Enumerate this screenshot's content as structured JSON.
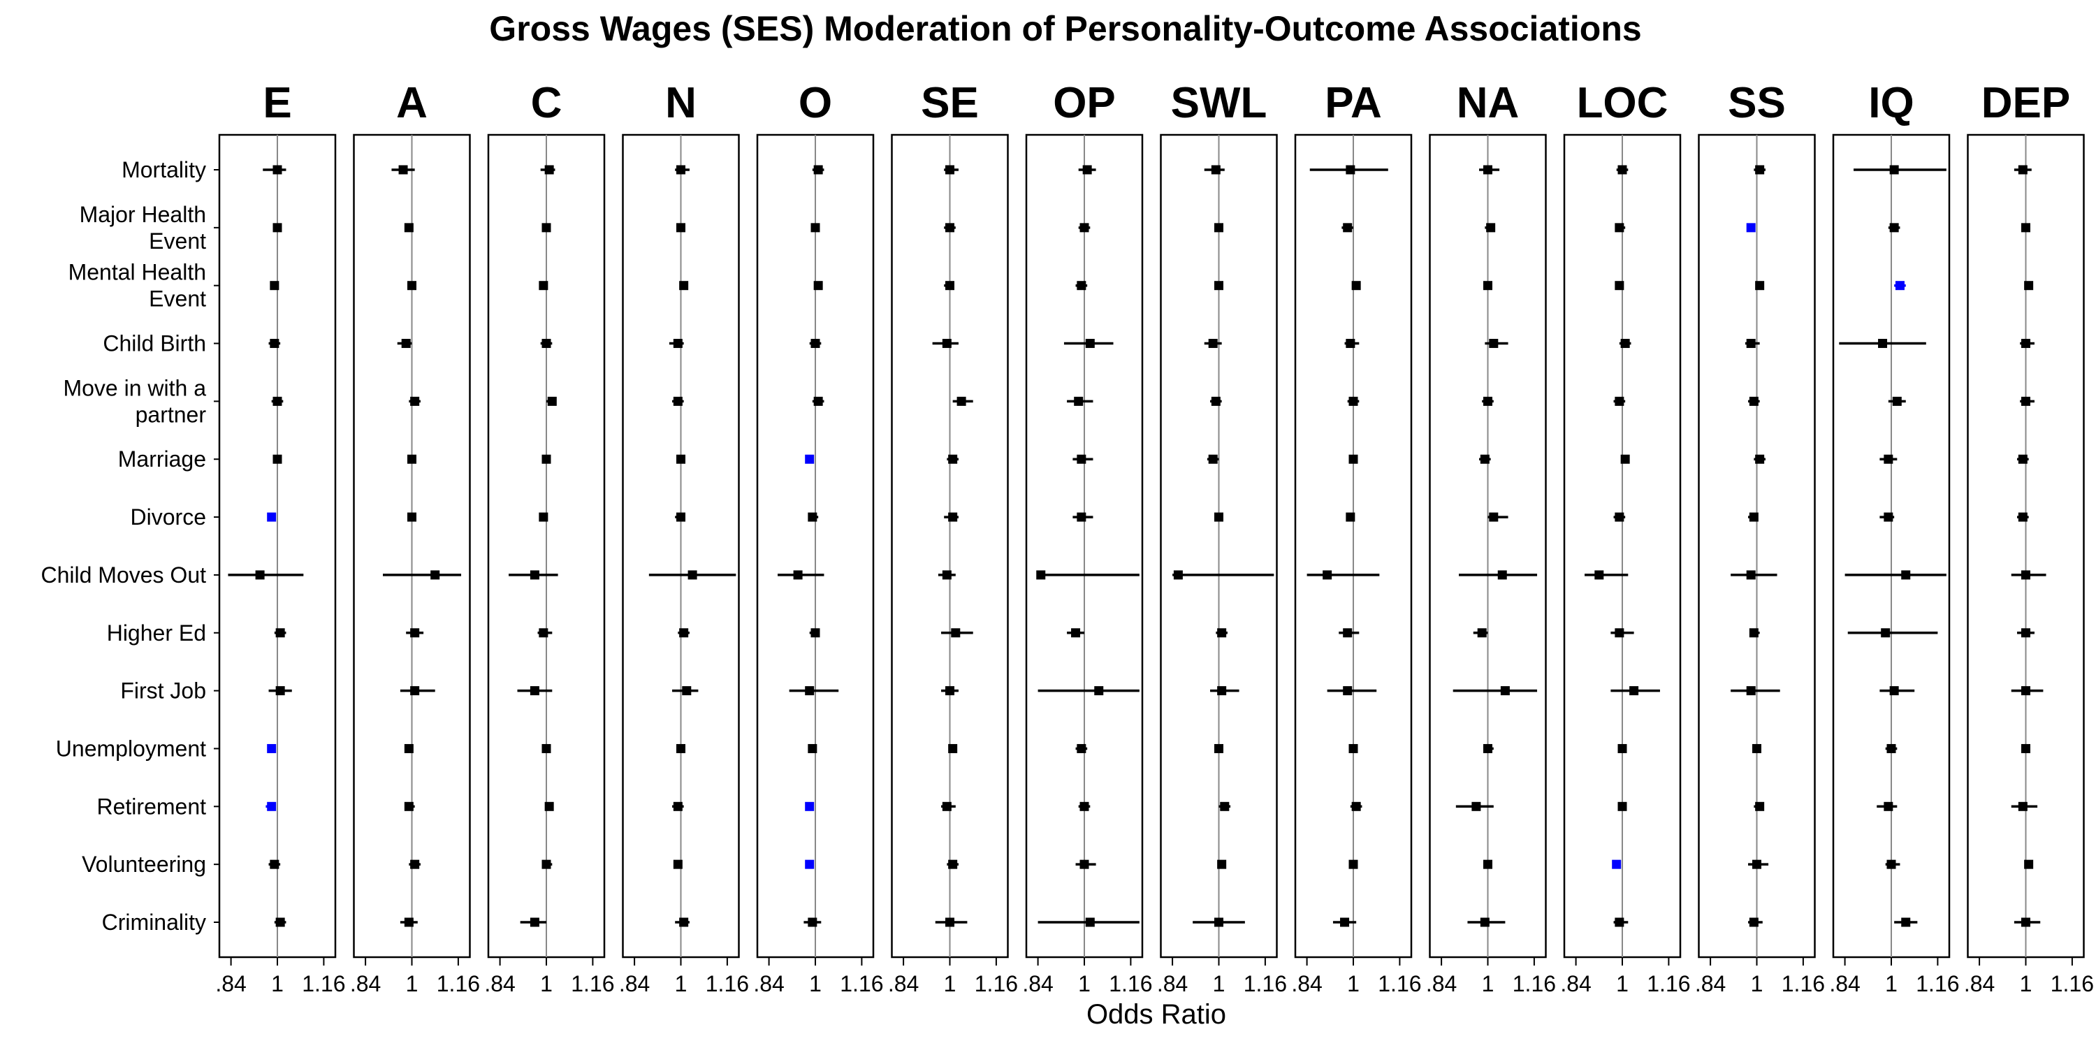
{
  "chart_data": {
    "type": "forest",
    "title": "Gross Wages (SES) Moderation of Personality-Outcome Associations",
    "xlabel": "Odds Ratio",
    "xlim": [
      0.8,
      1.2
    ],
    "x_ticks": [
      ".84",
      "1",
      "1.16"
    ],
    "x_tick_values": [
      0.84,
      1.0,
      1.16
    ],
    "reference_line": 1,
    "colors": {
      "default": "#000000",
      "significant": "#0000ff",
      "reference": "#888888"
    },
    "panels": [
      "E",
      "A",
      "C",
      "N",
      "O",
      "SE",
      "OP",
      "SWL",
      "PA",
      "NA",
      "LOC",
      "SS",
      "IQ",
      "DEP"
    ],
    "outcomes": [
      [
        "Mortality"
      ],
      [
        "Major Health",
        "Event"
      ],
      [
        "Mental Health",
        "Event"
      ],
      [
        "Child Birth"
      ],
      [
        "Move in with a",
        "partner"
      ],
      [
        "Marriage"
      ],
      [
        "Divorce"
      ],
      [
        "Child Moves Out"
      ],
      [
        "Higher Ed"
      ],
      [
        "First Job"
      ],
      [
        "Unemployment"
      ],
      [
        "Retirement"
      ],
      [
        "Volunteering"
      ],
      [
        "Criminality"
      ]
    ],
    "estimates": {
      "E": [
        [
          1.0,
          0.95,
          1.03,
          0
        ],
        [
          1.0,
          0.99,
          1.01,
          0
        ],
        [
          0.99,
          0.98,
          1.0,
          0
        ],
        [
          0.99,
          0.97,
          1.01,
          0
        ],
        [
          1.0,
          0.98,
          1.02,
          0
        ],
        [
          1.0,
          0.99,
          1.01,
          0
        ],
        [
          0.98,
          0.97,
          0.99,
          1
        ],
        [
          0.94,
          0.83,
          1.09,
          0
        ],
        [
          1.01,
          0.99,
          1.03,
          0
        ],
        [
          1.01,
          0.97,
          1.05,
          0
        ],
        [
          0.98,
          0.97,
          0.99,
          1
        ],
        [
          0.98,
          0.96,
          0.99,
          1
        ],
        [
          0.99,
          0.97,
          1.01,
          0
        ],
        [
          1.01,
          0.99,
          1.03,
          0
        ]
      ],
      "A": [
        [
          0.97,
          0.93,
          1.01,
          0
        ],
        [
          0.99,
          0.98,
          1.0,
          0
        ],
        [
          1.0,
          0.99,
          1.01,
          0
        ],
        [
          0.98,
          0.95,
          1.0,
          0
        ],
        [
          1.01,
          0.99,
          1.03,
          0
        ],
        [
          1.0,
          0.99,
          1.01,
          0
        ],
        [
          1.0,
          0.99,
          1.01,
          0
        ],
        [
          1.08,
          0.9,
          1.17,
          0
        ],
        [
          1.01,
          0.98,
          1.04,
          0
        ],
        [
          1.01,
          0.96,
          1.08,
          0
        ],
        [
          0.99,
          0.98,
          1.0,
          0
        ],
        [
          0.99,
          0.98,
          1.01,
          0
        ],
        [
          1.01,
          0.99,
          1.03,
          0
        ],
        [
          0.99,
          0.96,
          1.02,
          0
        ]
      ],
      "C": [
        [
          1.01,
          0.98,
          1.03,
          0
        ],
        [
          1.0,
          0.99,
          1.01,
          0
        ],
        [
          0.99,
          0.98,
          1.0,
          0
        ],
        [
          1.0,
          0.98,
          1.02,
          0
        ],
        [
          1.02,
          1.0,
          1.03,
          0
        ],
        [
          1.0,
          0.99,
          1.01,
          0
        ],
        [
          0.99,
          0.98,
          1.0,
          0
        ],
        [
          0.96,
          0.87,
          1.04,
          0
        ],
        [
          0.99,
          0.97,
          1.02,
          0
        ],
        [
          0.96,
          0.9,
          1.02,
          0
        ],
        [
          1.0,
          0.99,
          1.01,
          0
        ],
        [
          1.01,
          1.0,
          1.02,
          0
        ],
        [
          1.0,
          0.99,
          1.02,
          0
        ],
        [
          0.96,
          0.91,
          1.0,
          0
        ]
      ],
      "N": [
        [
          1.0,
          0.98,
          1.03,
          0
        ],
        [
          1.0,
          0.99,
          1.01,
          0
        ],
        [
          1.01,
          1.0,
          1.02,
          0
        ],
        [
          0.99,
          0.96,
          1.01,
          0
        ],
        [
          0.99,
          0.97,
          1.01,
          0
        ],
        [
          1.0,
          0.99,
          1.01,
          0
        ],
        [
          1.0,
          0.98,
          1.01,
          0
        ],
        [
          1.04,
          0.89,
          1.19,
          0
        ],
        [
          1.01,
          0.99,
          1.03,
          0
        ],
        [
          1.02,
          0.97,
          1.06,
          0
        ],
        [
          1.0,
          0.99,
          1.01,
          0
        ],
        [
          0.99,
          0.97,
          1.01,
          0
        ],
        [
          0.99,
          0.98,
          1.0,
          0
        ],
        [
          1.01,
          0.98,
          1.03,
          0
        ]
      ],
      "O": [
        [
          1.01,
          0.99,
          1.03,
          0
        ],
        [
          1.0,
          0.99,
          1.01,
          0
        ],
        [
          1.01,
          1.0,
          1.02,
          0
        ],
        [
          1.0,
          0.98,
          1.02,
          0
        ],
        [
          1.01,
          0.99,
          1.03,
          0
        ],
        [
          0.98,
          0.97,
          0.99,
          1
        ],
        [
          0.99,
          0.98,
          1.01,
          0
        ],
        [
          0.94,
          0.87,
          1.03,
          0
        ],
        [
          1.0,
          0.98,
          1.01,
          0
        ],
        [
          0.98,
          0.91,
          1.08,
          0
        ],
        [
          0.99,
          0.98,
          1.0,
          0
        ],
        [
          0.98,
          0.97,
          0.99,
          1
        ],
        [
          0.98,
          0.97,
          0.99,
          1
        ],
        [
          0.99,
          0.96,
          1.02,
          0
        ]
      ],
      "SE": [
        [
          1.0,
          0.98,
          1.03,
          0
        ],
        [
          1.0,
          0.98,
          1.02,
          0
        ],
        [
          1.0,
          0.98,
          1.01,
          0
        ],
        [
          0.99,
          0.94,
          1.03,
          0
        ],
        [
          1.04,
          1.01,
          1.08,
          0
        ],
        [
          1.01,
          0.99,
          1.03,
          0
        ],
        [
          1.01,
          0.98,
          1.03,
          0
        ],
        [
          0.99,
          0.96,
          1.02,
          0
        ],
        [
          1.02,
          0.97,
          1.08,
          0
        ],
        [
          1.0,
          0.97,
          1.03,
          0
        ],
        [
          1.01,
          1.0,
          1.02,
          0
        ],
        [
          0.99,
          0.97,
          1.02,
          0
        ],
        [
          1.01,
          0.99,
          1.03,
          0
        ],
        [
          1.0,
          0.95,
          1.06,
          0
        ]
      ],
      "OP": [
        [
          1.01,
          0.98,
          1.04,
          0
        ],
        [
          1.0,
          0.98,
          1.02,
          0
        ],
        [
          0.99,
          0.97,
          1.01,
          0
        ],
        [
          1.02,
          0.93,
          1.1,
          0
        ],
        [
          0.98,
          0.94,
          1.03,
          0
        ],
        [
          0.99,
          0.96,
          1.03,
          0
        ],
        [
          0.99,
          0.96,
          1.03,
          0
        ],
        [
          0.85,
          0.84,
          1.19,
          0
        ],
        [
          0.97,
          0.94,
          1.0,
          0
        ],
        [
          1.05,
          0.84,
          1.19,
          0
        ],
        [
          0.99,
          0.97,
          1.01,
          0
        ],
        [
          1.0,
          0.98,
          1.02,
          0
        ],
        [
          1.0,
          0.97,
          1.04,
          0
        ],
        [
          1.02,
          0.84,
          1.19,
          0
        ]
      ],
      "SWL": [
        [
          0.99,
          0.95,
          1.02,
          0
        ],
        [
          1.0,
          0.99,
          1.01,
          0
        ],
        [
          1.0,
          0.99,
          1.01,
          0
        ],
        [
          0.98,
          0.95,
          1.01,
          0
        ],
        [
          0.99,
          0.97,
          1.01,
          0
        ],
        [
          0.98,
          0.96,
          1.0,
          0
        ],
        [
          1.0,
          0.99,
          1.01,
          0
        ],
        [
          0.86,
          0.84,
          1.19,
          0
        ],
        [
          1.01,
          0.99,
          1.03,
          0
        ],
        [
          1.01,
          0.97,
          1.07,
          0
        ],
        [
          1.0,
          0.99,
          1.01,
          0
        ],
        [
          1.02,
          1.0,
          1.04,
          0
        ],
        [
          1.01,
          1.0,
          1.02,
          0
        ],
        [
          1.0,
          0.91,
          1.09,
          0
        ]
      ],
      "PA": [
        [
          0.99,
          0.85,
          1.12,
          0
        ],
        [
          0.98,
          0.96,
          1.0,
          0
        ],
        [
          1.01,
          1.0,
          1.02,
          0
        ],
        [
          0.99,
          0.97,
          1.02,
          0
        ],
        [
          1.0,
          0.98,
          1.02,
          0
        ],
        [
          1.0,
          0.99,
          1.01,
          0
        ],
        [
          0.99,
          0.98,
          1.0,
          0
        ],
        [
          0.91,
          0.84,
          1.09,
          0
        ],
        [
          0.98,
          0.95,
          1.02,
          0
        ],
        [
          0.98,
          0.91,
          1.08,
          0
        ],
        [
          1.0,
          0.99,
          1.01,
          0
        ],
        [
          1.01,
          0.99,
          1.03,
          0
        ],
        [
          1.0,
          0.99,
          1.01,
          0
        ],
        [
          0.97,
          0.93,
          1.01,
          0
        ]
      ],
      "NA": [
        [
          1.0,
          0.97,
          1.04,
          0
        ],
        [
          1.01,
          0.99,
          1.02,
          0
        ],
        [
          1.0,
          0.99,
          1.01,
          0
        ],
        [
          1.02,
          0.99,
          1.07,
          0
        ],
        [
          1.0,
          0.98,
          1.02,
          0
        ],
        [
          0.99,
          0.97,
          1.01,
          0
        ],
        [
          1.02,
          1.0,
          1.07,
          0
        ],
        [
          1.05,
          0.9,
          1.17,
          0
        ],
        [
          0.98,
          0.95,
          1.0,
          0
        ],
        [
          1.06,
          0.88,
          1.17,
          0
        ],
        [
          1.0,
          0.99,
          1.02,
          0
        ],
        [
          0.96,
          0.89,
          1.02,
          0
        ],
        [
          1.0,
          0.99,
          1.01,
          0
        ],
        [
          0.99,
          0.93,
          1.06,
          0
        ]
      ],
      "LOC": [
        [
          1.0,
          0.98,
          1.02,
          0
        ],
        [
          0.99,
          0.98,
          1.01,
          0
        ],
        [
          0.99,
          0.98,
          1.0,
          0
        ],
        [
          1.01,
          0.99,
          1.03,
          0
        ],
        [
          0.99,
          0.97,
          1.01,
          0
        ],
        [
          1.01,
          1.0,
          1.02,
          0
        ],
        [
          0.99,
          0.97,
          1.01,
          0
        ],
        [
          0.92,
          0.87,
          1.02,
          0
        ],
        [
          0.99,
          0.96,
          1.04,
          0
        ],
        [
          1.04,
          0.96,
          1.13,
          0
        ],
        [
          1.0,
          0.99,
          1.01,
          0
        ],
        [
          1.0,
          0.99,
          1.01,
          0
        ],
        [
          0.98,
          0.97,
          0.99,
          1
        ],
        [
          0.99,
          0.97,
          1.02,
          0
        ]
      ],
      "SS": [
        [
          1.01,
          0.99,
          1.03,
          0
        ],
        [
          0.98,
          0.97,
          0.99,
          1
        ],
        [
          1.01,
          1.0,
          1.02,
          0
        ],
        [
          0.98,
          0.96,
          1.01,
          0
        ],
        [
          0.99,
          0.97,
          1.01,
          0
        ],
        [
          1.01,
          0.99,
          1.03,
          0
        ],
        [
          0.99,
          0.97,
          1.0,
          0
        ],
        [
          0.98,
          0.91,
          1.07,
          0
        ],
        [
          0.99,
          0.98,
          1.01,
          0
        ],
        [
          0.98,
          0.91,
          1.08,
          0
        ],
        [
          1.0,
          0.99,
          1.01,
          0
        ],
        [
          1.01,
          0.99,
          1.02,
          0
        ],
        [
          1.0,
          0.97,
          1.04,
          0
        ],
        [
          0.99,
          0.97,
          1.02,
          0
        ]
      ],
      "IQ": [
        [
          1.01,
          0.87,
          1.19,
          0
        ],
        [
          1.01,
          0.99,
          1.03,
          0
        ],
        [
          1.03,
          1.01,
          1.05,
          1
        ],
        [
          0.97,
          0.82,
          1.12,
          0
        ],
        [
          1.02,
          0.99,
          1.05,
          0
        ],
        [
          0.99,
          0.96,
          1.02,
          0
        ],
        [
          0.99,
          0.96,
          1.01,
          0
        ],
        [
          1.05,
          0.84,
          1.19,
          0
        ],
        [
          0.98,
          0.85,
          1.16,
          0
        ],
        [
          1.01,
          0.96,
          1.08,
          0
        ],
        [
          1.0,
          0.98,
          1.02,
          0
        ],
        [
          0.99,
          0.95,
          1.02,
          0
        ],
        [
          1.0,
          0.98,
          1.03,
          0
        ],
        [
          1.05,
          1.01,
          1.09,
          0
        ]
      ],
      "DEP": [
        [
          0.99,
          0.96,
          1.02,
          0
        ],
        [
          1.0,
          0.99,
          1.01,
          0
        ],
        [
          1.01,
          1.0,
          1.02,
          0
        ],
        [
          1.0,
          0.98,
          1.03,
          0
        ],
        [
          1.0,
          0.98,
          1.03,
          0
        ],
        [
          0.99,
          0.97,
          1.01,
          0
        ],
        [
          0.99,
          0.97,
          1.01,
          0
        ],
        [
          1.0,
          0.95,
          1.07,
          0
        ],
        [
          1.0,
          0.97,
          1.03,
          0
        ],
        [
          1.0,
          0.95,
          1.06,
          0
        ],
        [
          1.0,
          0.99,
          1.01,
          0
        ],
        [
          0.99,
          0.95,
          1.04,
          0
        ],
        [
          1.01,
          1.0,
          1.02,
          0
        ],
        [
          1.0,
          0.96,
          1.05,
          0
        ]
      ]
    }
  }
}
